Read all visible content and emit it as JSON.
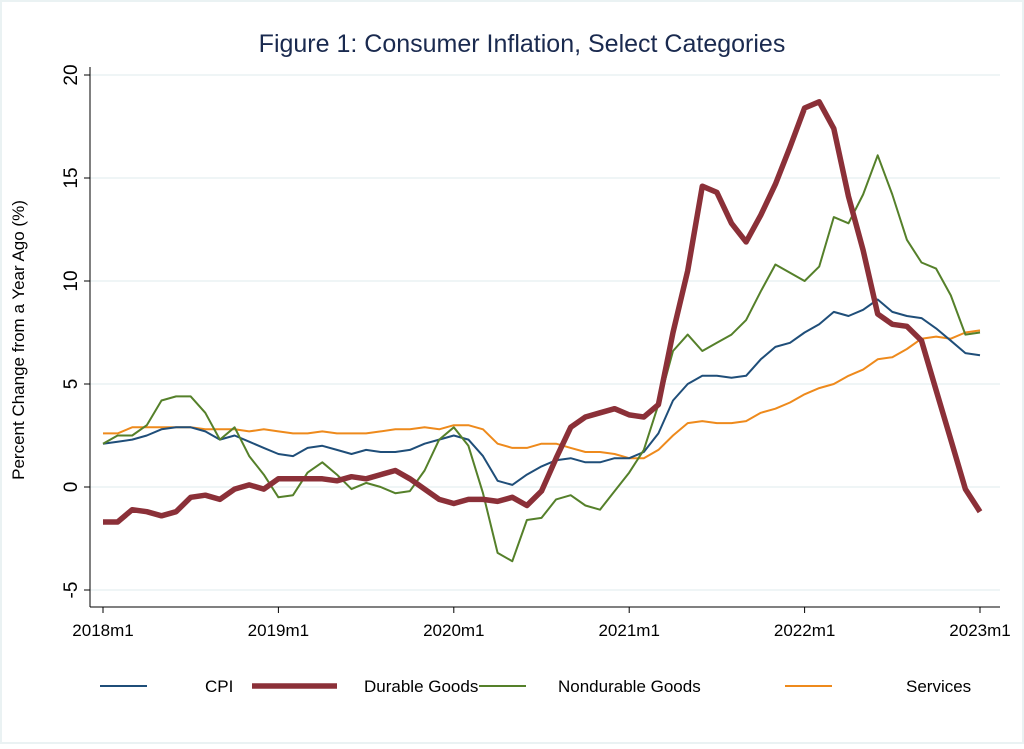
{
  "chart_data": {
    "type": "line",
    "title": "Figure 1: Consumer Inflation, Select Categories",
    "xlabel": "",
    "ylabel": "Percent Change from a Year Ago (%)",
    "ylim": [
      -5,
      20
    ],
    "yticks": [
      -5,
      0,
      5,
      10,
      15,
      20
    ],
    "ytick_labels": [
      "-5",
      "0",
      "5",
      "10",
      "15",
      "20"
    ],
    "xtick_labels": [
      "2018m1",
      "2019m1",
      "2020m1",
      "2021m1",
      "2022m1",
      "2023m1"
    ],
    "x_start": "2018m1",
    "x_end": "2023m1",
    "n_months": 61,
    "grid": true,
    "legend_position": "bottom",
    "series": [
      {
        "name": "CPI",
        "color": "#1f4e79",
        "values": [
          2.1,
          2.2,
          2.3,
          2.5,
          2.8,
          2.9,
          2.9,
          2.7,
          2.3,
          2.5,
          2.2,
          1.9,
          1.6,
          1.5,
          1.9,
          2.0,
          1.8,
          1.6,
          1.8,
          1.7,
          1.7,
          1.8,
          2.1,
          2.3,
          2.5,
          2.3,
          1.5,
          0.3,
          0.1,
          0.6,
          1.0,
          1.3,
          1.4,
          1.2,
          1.2,
          1.4,
          1.4,
          1.7,
          2.6,
          4.2,
          5.0,
          5.4,
          5.4,
          5.3,
          5.4,
          6.2,
          6.8,
          7.0,
          7.5,
          7.9,
          8.5,
          8.3,
          8.6,
          9.1,
          8.5,
          8.3,
          8.2,
          7.7,
          7.1,
          6.5,
          6.4
        ]
      },
      {
        "name": "Durable Goods",
        "color": "#8b3038",
        "values": [
          -1.7,
          -1.7,
          -1.1,
          -1.2,
          -1.4,
          -1.2,
          -0.5,
          -0.4,
          -0.6,
          -0.1,
          0.1,
          -0.1,
          0.4,
          0.4,
          0.4,
          0.4,
          0.3,
          0.5,
          0.4,
          0.6,
          0.8,
          0.4,
          -0.1,
          -0.6,
          -0.8,
          -0.6,
          -0.6,
          -0.7,
          -0.5,
          -0.9,
          -0.2,
          1.4,
          2.9,
          3.4,
          3.6,
          3.8,
          3.5,
          3.4,
          4.0,
          7.5,
          10.5,
          14.6,
          14.3,
          12.8,
          11.9,
          13.2,
          14.7,
          16.5,
          18.4,
          18.7,
          17.4,
          14.1,
          11.5,
          8.4,
          7.9,
          7.8,
          7.1,
          4.7,
          2.3,
          -0.1,
          -1.2
        ]
      },
      {
        "name": "Nondurable Goods",
        "color": "#55802a",
        "values": [
          2.1,
          2.5,
          2.5,
          3.0,
          4.2,
          4.4,
          4.4,
          3.6,
          2.3,
          2.9,
          1.5,
          0.6,
          -0.5,
          -0.4,
          0.7,
          1.2,
          0.6,
          -0.1,
          0.2,
          0.0,
          -0.3,
          -0.2,
          0.8,
          2.3,
          2.9,
          2.0,
          -0.3,
          -3.2,
          -3.6,
          -1.6,
          -1.5,
          -0.6,
          -0.4,
          -0.9,
          -1.1,
          -0.2,
          0.7,
          1.8,
          4.0,
          6.6,
          7.4,
          6.6,
          7.0,
          7.4,
          8.1,
          9.5,
          10.8,
          10.4,
          10.0,
          10.7,
          13.1,
          12.8,
          14.2,
          16.1,
          14.2,
          12.0,
          10.9,
          10.6,
          9.3,
          7.4,
          7.5
        ]
      },
      {
        "name": "Services",
        "color": "#ee8a1c",
        "values": [
          2.6,
          2.6,
          2.9,
          2.9,
          2.9,
          2.9,
          2.9,
          2.8,
          2.8,
          2.8,
          2.7,
          2.8,
          2.7,
          2.6,
          2.6,
          2.7,
          2.6,
          2.6,
          2.6,
          2.7,
          2.8,
          2.8,
          2.9,
          2.8,
          3.0,
          3.0,
          2.8,
          2.1,
          1.9,
          1.9,
          2.1,
          2.1,
          1.9,
          1.7,
          1.7,
          1.6,
          1.4,
          1.4,
          1.8,
          2.5,
          3.1,
          3.2,
          3.1,
          3.1,
          3.2,
          3.6,
          3.8,
          4.1,
          4.5,
          4.8,
          5.0,
          5.4,
          5.7,
          6.2,
          6.3,
          6.7,
          7.2,
          7.3,
          7.2,
          7.5,
          7.6
        ]
      }
    ]
  }
}
